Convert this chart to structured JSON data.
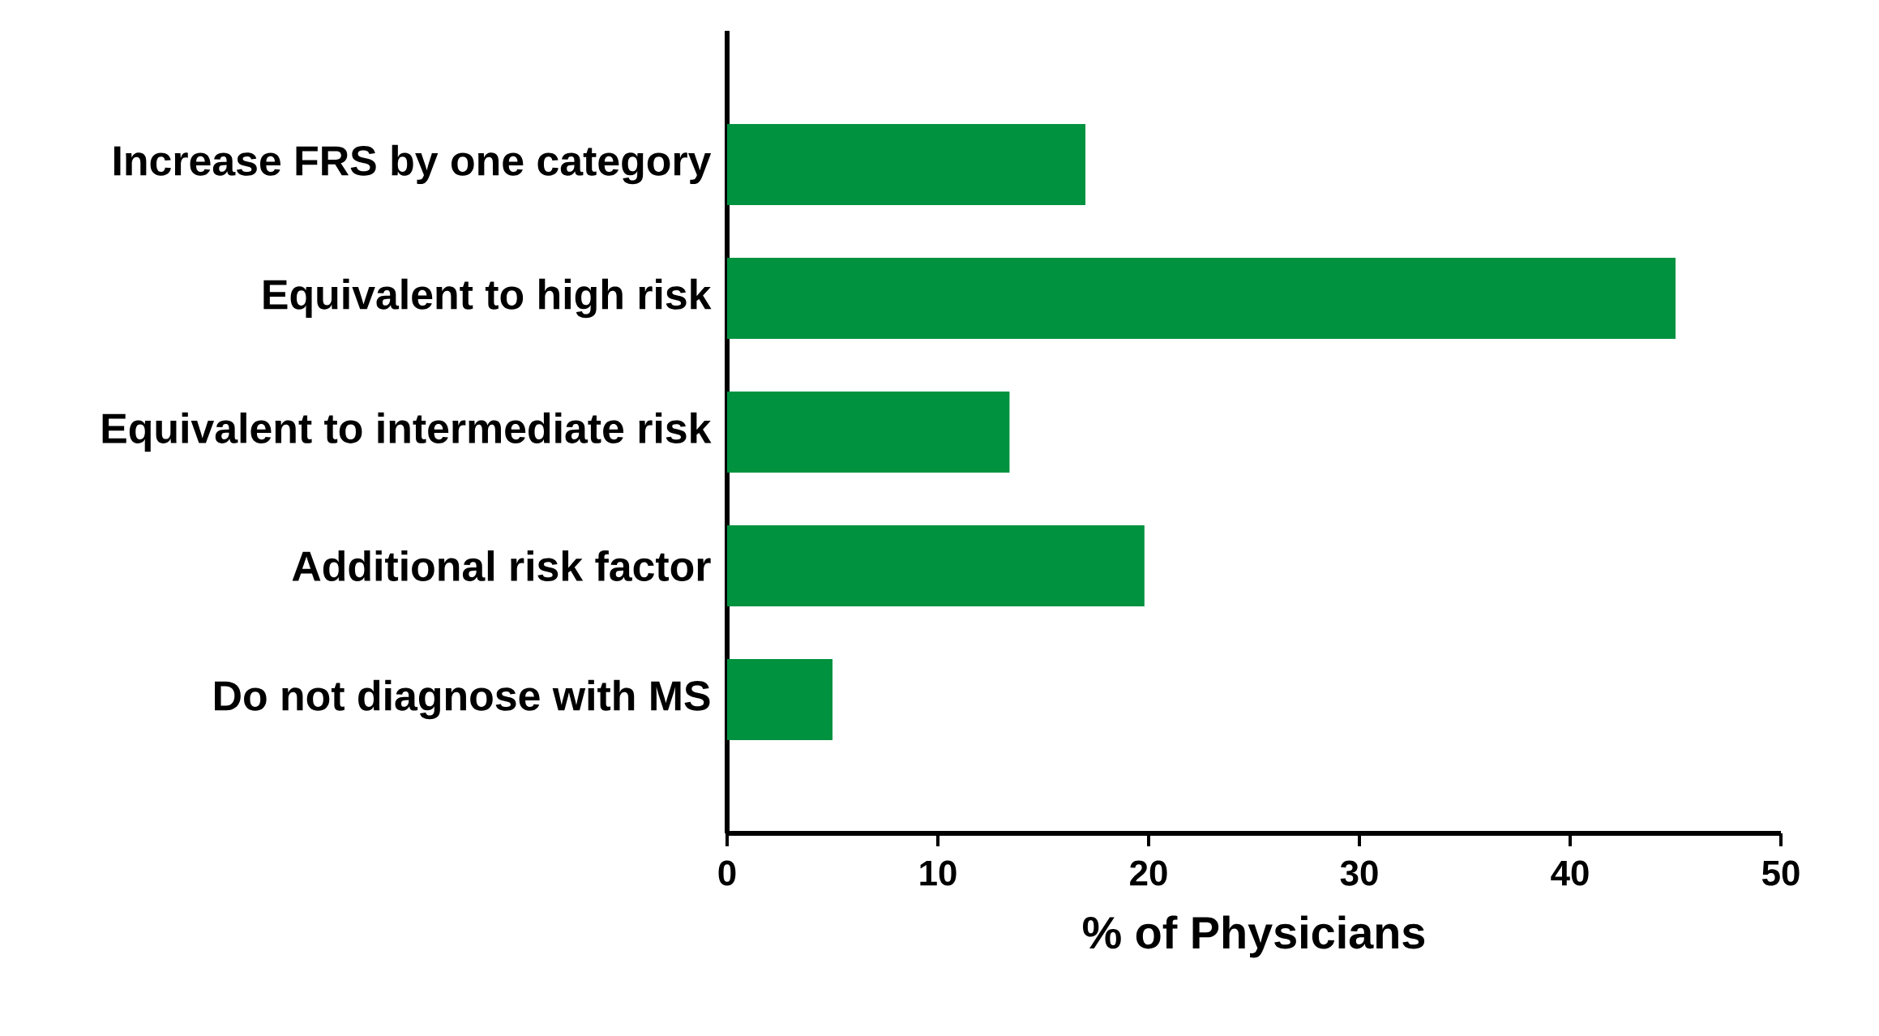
{
  "chart_data": {
    "type": "bar",
    "orientation": "horizontal",
    "xlabel": "% of Physicians",
    "categories": [
      "Increase FRS by one category",
      "Equivalent to high risk",
      "Equivalent to intermediate risk",
      "Additional risk factor",
      "Do not diagnose with MS"
    ],
    "values": [
      17,
      45,
      13.4,
      19.8,
      5
    ],
    "color": "#00923f",
    "xlim": [
      0,
      50
    ],
    "xticks": [
      0,
      10,
      20,
      30,
      40,
      50
    ],
    "grid": false
  }
}
